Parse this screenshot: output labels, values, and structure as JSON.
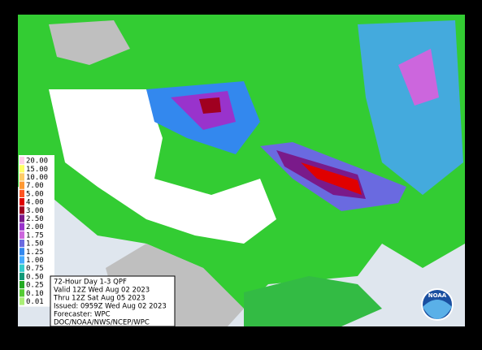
{
  "map": {
    "legend": [
      {
        "label": "20.00",
        "color": "#ffd0e8"
      },
      {
        "label": "15.00",
        "color": "#ffff66"
      },
      {
        "label": "10.00",
        "color": "#ffcc66"
      },
      {
        "label": "7.00",
        "color": "#ff9933"
      },
      {
        "label": "5.00",
        "color": "#ff5522"
      },
      {
        "label": "4.00",
        "color": "#e00000"
      },
      {
        "label": "3.00",
        "color": "#a00020"
      },
      {
        "label": "2.50",
        "color": "#7a1a8a"
      },
      {
        "label": "2.00",
        "color": "#9933cc"
      },
      {
        "label": "1.75",
        "color": "#cc66dd"
      },
      {
        "label": "1.50",
        "color": "#6a6ae0"
      },
      {
        "label": "1.25",
        "color": "#3388ee"
      },
      {
        "label": "1.00",
        "color": "#44aaff"
      },
      {
        "label": "0.75",
        "color": "#33cccc"
      },
      {
        "label": "0.50",
        "color": "#119977"
      },
      {
        "label": "0.25",
        "color": "#22aa22"
      },
      {
        "label": "0.10",
        "color": "#55cc33"
      },
      {
        "label": "0.01",
        "color": "#aaee77"
      }
    ],
    "info": [
      "72-Hour Day 1-3 QPF",
      "Valid 12Z Wed Aug 02 2023",
      "Thru 12Z Sat Aug 05 2023",
      "Issued: 0959Z Wed Aug 02 2023",
      "Forecaster: WPC",
      "DOC/NOAA/NWS/NCEP/WPC"
    ],
    "logo": "NOAA"
  }
}
